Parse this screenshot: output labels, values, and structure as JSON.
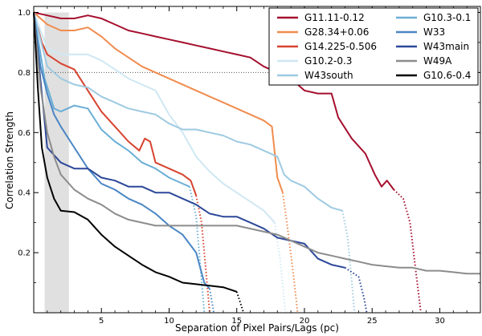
{
  "chart_data": {
    "type": "line",
    "xlabel": "Separation of Pixel Pairs/Lags (pc)",
    "ylabel": "Correlation Strength",
    "xlim": [
      0,
      33
    ],
    "ylim": [
      0,
      1.02
    ],
    "xticks": [
      5,
      10,
      15,
      20,
      25,
      30
    ],
    "yticks": [
      0.2,
      0.4,
      0.6,
      0.8,
      1.0
    ],
    "xtick_labels": [
      "5",
      "10",
      "15",
      "20",
      "25",
      "30"
    ],
    "ytick_labels": [
      "0.2",
      "0.4",
      "0.6",
      "0.8",
      "1.0"
    ],
    "shaded_region": [
      0.8,
      2.6
    ],
    "reference_line_y": 0.8,
    "legend_position": "top-right",
    "series": [
      {
        "name": "G11.11-0.12",
        "color": "#a50f2e",
        "solid": [
          [
            0,
            1.0
          ],
          [
            1,
            0.99
          ],
          [
            2,
            0.98
          ],
          [
            3,
            0.98
          ],
          [
            4,
            0.99
          ],
          [
            5,
            0.98
          ],
          [
            6,
            0.96
          ],
          [
            7,
            0.94
          ],
          [
            8,
            0.93
          ],
          [
            9,
            0.92
          ],
          [
            10,
            0.91
          ],
          [
            11,
            0.9
          ],
          [
            12,
            0.89
          ],
          [
            13,
            0.88
          ],
          [
            14,
            0.87
          ],
          [
            15,
            0.86
          ],
          [
            16,
            0.85
          ],
          [
            17,
            0.82
          ],
          [
            18,
            0.8
          ],
          [
            19,
            0.78
          ],
          [
            20,
            0.74
          ],
          [
            21,
            0.73
          ],
          [
            22,
            0.73
          ],
          [
            22.5,
            0.65
          ],
          [
            23.5,
            0.58
          ],
          [
            24.5,
            0.53
          ],
          [
            25.2,
            0.46
          ],
          [
            25.7,
            0.42
          ],
          [
            26.1,
            0.44
          ],
          [
            26.6,
            0.41
          ]
        ],
        "dotted": [
          [
            26.6,
            0.41
          ],
          [
            27.3,
            0.38
          ],
          [
            27.8,
            0.3
          ],
          [
            28.2,
            0.15
          ],
          [
            28.6,
            0.0
          ]
        ]
      },
      {
        "name": "G28.34+0.06",
        "color": "#f08c4e",
        "solid": [
          [
            0,
            1.0
          ],
          [
            1,
            0.96
          ],
          [
            2,
            0.94
          ],
          [
            3,
            0.94
          ],
          [
            4,
            0.95
          ],
          [
            5,
            0.92
          ],
          [
            6,
            0.88
          ],
          [
            7,
            0.85
          ],
          [
            8,
            0.82
          ],
          [
            9,
            0.8
          ],
          [
            10,
            0.78
          ],
          [
            11,
            0.76
          ],
          [
            12,
            0.74
          ],
          [
            13,
            0.72
          ],
          [
            14,
            0.7
          ],
          [
            15,
            0.68
          ],
          [
            16,
            0.66
          ],
          [
            17,
            0.64
          ],
          [
            17.6,
            0.62
          ],
          [
            18,
            0.45
          ],
          [
            18.4,
            0.4
          ]
        ],
        "dotted": [
          [
            18.4,
            0.4
          ],
          [
            18.7,
            0.3
          ],
          [
            19.2,
            0.12
          ],
          [
            19.5,
            0.0
          ]
        ]
      },
      {
        "name": "G14.225-0.506",
        "color": "#d7432f",
        "solid": [
          [
            0,
            1.0
          ],
          [
            0.6,
            0.9
          ],
          [
            1,
            0.86
          ],
          [
            2,
            0.83
          ],
          [
            3,
            0.81
          ],
          [
            4,
            0.74
          ],
          [
            5,
            0.67
          ],
          [
            6,
            0.62
          ],
          [
            7,
            0.57
          ],
          [
            7.8,
            0.54
          ],
          [
            8.2,
            0.58
          ],
          [
            8.6,
            0.57
          ],
          [
            9,
            0.5
          ],
          [
            10,
            0.48
          ],
          [
            11,
            0.46
          ],
          [
            11.6,
            0.44
          ],
          [
            12,
            0.39
          ]
        ],
        "dotted": [
          [
            12,
            0.39
          ],
          [
            12.4,
            0.3
          ],
          [
            12.8,
            0.1
          ],
          [
            13,
            0.0
          ]
        ]
      },
      {
        "name": "G10.2-0.3",
        "color": "#cfe8f3",
        "solid": [
          [
            0,
            1.0
          ],
          [
            1,
            0.88
          ],
          [
            2,
            0.86
          ],
          [
            3,
            0.86
          ],
          [
            4,
            0.86
          ],
          [
            5,
            0.84
          ],
          [
            6,
            0.81
          ],
          [
            7,
            0.78
          ],
          [
            8,
            0.76
          ],
          [
            9,
            0.74
          ],
          [
            10,
            0.66
          ],
          [
            11,
            0.6
          ],
          [
            12,
            0.52
          ],
          [
            13,
            0.47
          ],
          [
            14,
            0.43
          ],
          [
            15,
            0.4
          ],
          [
            16,
            0.37
          ],
          [
            17,
            0.34
          ],
          [
            17.8,
            0.3
          ]
        ],
        "dotted": [
          [
            17.8,
            0.3
          ],
          [
            18.2,
            0.18
          ],
          [
            18.6,
            0.0
          ]
        ]
      },
      {
        "name": "W43south",
        "color": "#9ecae1",
        "solid": [
          [
            0,
            1.0
          ],
          [
            1,
            0.82
          ],
          [
            2,
            0.78
          ],
          [
            3,
            0.76
          ],
          [
            4,
            0.75
          ],
          [
            5,
            0.72
          ],
          [
            6,
            0.7
          ],
          [
            7,
            0.68
          ],
          [
            8,
            0.67
          ],
          [
            9,
            0.66
          ],
          [
            10,
            0.63
          ],
          [
            11,
            0.61
          ],
          [
            12,
            0.61
          ],
          [
            13,
            0.6
          ],
          [
            14,
            0.59
          ],
          [
            15,
            0.57
          ],
          [
            16,
            0.56
          ],
          [
            17,
            0.54
          ],
          [
            18,
            0.52
          ],
          [
            18.5,
            0.46
          ],
          [
            19,
            0.44
          ],
          [
            20,
            0.42
          ],
          [
            21,
            0.38
          ],
          [
            22,
            0.35
          ],
          [
            22.8,
            0.34
          ]
        ],
        "dotted": [
          [
            22.8,
            0.34
          ],
          [
            23.2,
            0.25
          ],
          [
            23.7,
            0.0
          ]
        ]
      },
      {
        "name": "G10.3-0.1",
        "color": "#6baed6",
        "solid": [
          [
            0,
            1.0
          ],
          [
            0.8,
            0.78
          ],
          [
            1.5,
            0.68
          ],
          [
            2,
            0.67
          ],
          [
            3,
            0.69
          ],
          [
            4,
            0.68
          ],
          [
            5,
            0.61
          ],
          [
            6,
            0.57
          ],
          [
            7,
            0.54
          ],
          [
            8,
            0.5
          ],
          [
            9,
            0.48
          ],
          [
            10,
            0.45
          ],
          [
            11,
            0.43
          ],
          [
            11.5,
            0.42
          ]
        ],
        "dotted": [
          [
            11.5,
            0.42
          ],
          [
            12,
            0.32
          ],
          [
            12.6,
            0.0
          ]
        ]
      },
      {
        "name": "W33",
        "color": "#4a86c4",
        "solid": [
          [
            0,
            1.0
          ],
          [
            0.5,
            0.82
          ],
          [
            1,
            0.73
          ],
          [
            1.5,
            0.66
          ],
          [
            2,
            0.62
          ],
          [
            3,
            0.55
          ],
          [
            4,
            0.48
          ],
          [
            5,
            0.43
          ],
          [
            6,
            0.41
          ],
          [
            7,
            0.38
          ],
          [
            8,
            0.36
          ],
          [
            9,
            0.33
          ],
          [
            10,
            0.29
          ],
          [
            11,
            0.26
          ],
          [
            12,
            0.2
          ],
          [
            12.6,
            0.1
          ],
          [
            13,
            0.08
          ]
        ],
        "dotted": [
          [
            13,
            0.08
          ],
          [
            13.3,
            0.0
          ]
        ]
      },
      {
        "name": "W43main",
        "color": "#2d4899",
        "solid": [
          [
            0,
            1.0
          ],
          [
            1,
            0.55
          ],
          [
            2,
            0.5
          ],
          [
            3,
            0.48
          ],
          [
            4,
            0.48
          ],
          [
            5,
            0.45
          ],
          [
            6,
            0.44
          ],
          [
            7,
            0.42
          ],
          [
            8,
            0.42
          ],
          [
            9,
            0.4
          ],
          [
            10,
            0.4
          ],
          [
            11,
            0.38
          ],
          [
            12,
            0.36
          ],
          [
            13,
            0.33
          ],
          [
            14,
            0.32
          ],
          [
            15,
            0.32
          ],
          [
            16,
            0.3
          ],
          [
            17,
            0.28
          ],
          [
            18,
            0.25
          ],
          [
            19,
            0.24
          ],
          [
            20,
            0.23
          ],
          [
            21,
            0.18
          ],
          [
            22,
            0.16
          ],
          [
            23,
            0.15
          ]
        ],
        "dotted": [
          [
            23,
            0.15
          ],
          [
            24,
            0.12
          ],
          [
            24.4,
            0.05
          ],
          [
            24.6,
            0.0
          ]
        ]
      },
      {
        "name": "W49A",
        "color": "#8c8c8c",
        "solid": [
          [
            0,
            1.0
          ],
          [
            0.5,
            0.75
          ],
          [
            1,
            0.6
          ],
          [
            1.5,
            0.52
          ],
          [
            2,
            0.46
          ],
          [
            3,
            0.41
          ],
          [
            4,
            0.38
          ],
          [
            5,
            0.36
          ],
          [
            6,
            0.33
          ],
          [
            7,
            0.31
          ],
          [
            8,
            0.3
          ],
          [
            9,
            0.29
          ],
          [
            10,
            0.29
          ],
          [
            11,
            0.29
          ],
          [
            12,
            0.29
          ],
          [
            13,
            0.29
          ],
          [
            14,
            0.29
          ],
          [
            15,
            0.29
          ],
          [
            16,
            0.28
          ],
          [
            17,
            0.27
          ],
          [
            18,
            0.26
          ],
          [
            19,
            0.24
          ],
          [
            20,
            0.22
          ],
          [
            21,
            0.2
          ],
          [
            22,
            0.19
          ],
          [
            23,
            0.18
          ],
          [
            24,
            0.17
          ],
          [
            25,
            0.16
          ],
          [
            26,
            0.155
          ],
          [
            27,
            0.15
          ],
          [
            28,
            0.15
          ],
          [
            29,
            0.14
          ],
          [
            30,
            0.14
          ],
          [
            31,
            0.135
          ],
          [
            32,
            0.13
          ],
          [
            33,
            0.13
          ]
        ],
        "dotted": []
      },
      {
        "name": "G10.6-0.4",
        "color": "#000000",
        "solid": [
          [
            0,
            1.0
          ],
          [
            0.3,
            0.75
          ],
          [
            0.6,
            0.55
          ],
          [
            1,
            0.45
          ],
          [
            1.5,
            0.38
          ],
          [
            2,
            0.34
          ],
          [
            3,
            0.335
          ],
          [
            4,
            0.31
          ],
          [
            5,
            0.26
          ],
          [
            6,
            0.22
          ],
          [
            7,
            0.19
          ],
          [
            8,
            0.16
          ],
          [
            9,
            0.135
          ],
          [
            10,
            0.12
          ],
          [
            11,
            0.1
          ],
          [
            12,
            0.095
          ],
          [
            13,
            0.09
          ],
          [
            14,
            0.085
          ],
          [
            15,
            0.07
          ]
        ],
        "dotted": [
          [
            15,
            0.07
          ],
          [
            15.5,
            0.0
          ]
        ]
      }
    ]
  }
}
